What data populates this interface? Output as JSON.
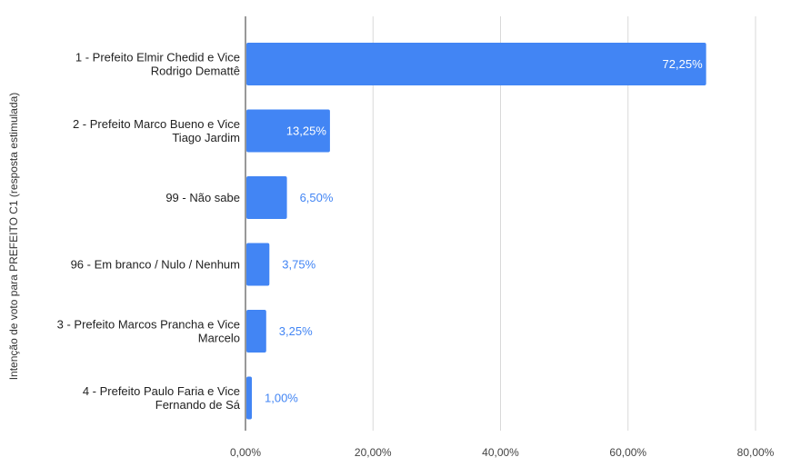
{
  "chart_data": {
    "type": "bar",
    "orientation": "horizontal",
    "ylabel": "Intenção de voto para PREFEITO C1 (resposta estimulada)",
    "categories": [
      [
        "1 - Prefeito Elmir Chedid e Vice",
        "Rodrigo Demattê"
      ],
      [
        "2 - Prefeito Marco Bueno e Vice",
        "Tiago Jardim"
      ],
      [
        "99 - Não sabe"
      ],
      [
        "96 - Em branco / Nulo / Nenhum"
      ],
      [
        "3 - Prefeito Marcos Prancha e Vice",
        "Marcelo"
      ],
      [
        "4 - Prefeito Paulo Faria e Vice",
        "Fernando de Sá"
      ]
    ],
    "values": [
      72.25,
      13.25,
      6.5,
      3.75,
      3.25,
      1.0
    ],
    "value_labels": [
      "72,25%",
      "13,25%",
      "6,50%",
      "3,75%",
      "3,25%",
      "1,00%"
    ],
    "xlim": [
      0,
      80
    ],
    "ticks": [
      0,
      20,
      40,
      60,
      80
    ],
    "tick_labels": [
      "0,00%",
      "20,00%",
      "40,00%",
      "60,00%",
      "80,00%"
    ],
    "grid": true,
    "legend": "none",
    "colors": {
      "bar": "#4285f4",
      "label_inside": "#ffffff",
      "label_outside": "#4285f4",
      "grid": "#d9d9d9",
      "axis": "#333333"
    }
  }
}
